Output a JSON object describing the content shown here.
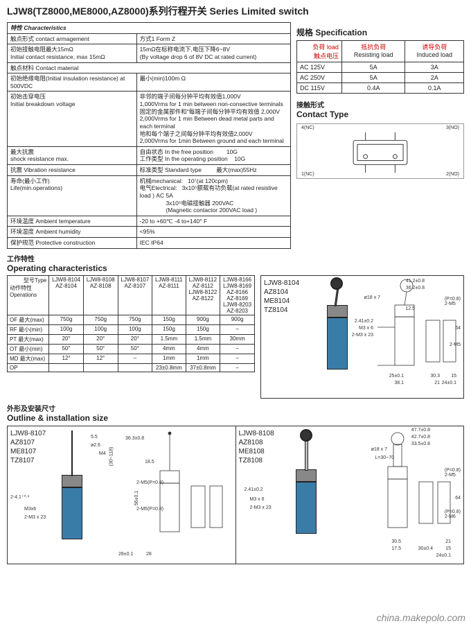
{
  "title": "LJW8(TZ8000,ME8000,AZ8000)系列行程开关 Series Limited switch",
  "char": {
    "heading": "特性 Characteristics",
    "rows": [
      [
        "触点形式 contact armagement",
        "方式1 Form Z"
      ],
      [
        "初始接触电阻最大15mΩ\nInitial contact resistance, max 15mΩ",
        "15mΩ在标称电流下,电压下降6~8V\n(By voltage drop 6 of 8V DC at rated current)"
      ],
      [
        "触点材料 Contact material",
        ""
      ],
      [
        "初始绝缘电阻(Initial insulation resistance) at 500VDC",
        "最小(min)100m Ω"
      ],
      [
        "初始击穿电压\nInitial breakdown voltage",
        "非邻的端子间每分钟平均有效值1,000V\n1,000Vrms for 1 min between non-consective terminals\n固定的金属部件和\"每端子间每分钟平均有效值 2,000V\n2,000Vrms for 1 min Between dead metal parts and each terminal\n地和每个端子之间每分钟平均有效值2,000V\n2,000Vrms for 1min Between ground and each terminal"
      ],
      [
        "最大抗震\nshock resistance max.",
        "自由状态 In the free position        10G\n工作类型 In the operating position    10G"
      ],
      [
        "抗震 Vibration resistance",
        "标准类型 Standard type         最大(max)55Hz"
      ],
      [
        "寿命(最小工作)\nLife(min.operations)",
        "机械mechanical:   10⁷(at 120cpm)\n电气Electrical:   3x10⁵额载有功负载(at rated resistive load ) AC 5A\n                3x10⁵电磁接触器 200VAC\n                (Magnetic contactor 200VAC load )"
      ],
      [
        "环境温度 Ambient temperature",
        "-20 to +60℃ -4 to+140° F"
      ],
      [
        "环境湿度 Ambient humidity",
        "<95%"
      ],
      [
        "保护规范 Protective construction",
        "IEC IP64"
      ]
    ]
  },
  "spec": {
    "heading_cn": "规格",
    "heading_en": "Specification",
    "col_load_cn": "负荷 load",
    "col_volt_cn": "触点电压",
    "col_res_cn": "抵抗负荷",
    "col_res_en": "Resisting load",
    "col_ind_cn": "诱导负荷",
    "col_ind_en": "Induced load",
    "rows": [
      [
        "AC 125V",
        "5A",
        "3A"
      ],
      [
        "AC 250V",
        "5A",
        "2A"
      ],
      [
        "DC 115V",
        "0.4A",
        "0.1A"
      ]
    ]
  },
  "contact": {
    "heading_cn": "接触形式",
    "heading_en": "Contact Type",
    "labels": {
      "nc1": "1(NC)",
      "no2": "2(NO)",
      "no3": "3(NO)",
      "nc4": "4(NC)"
    }
  },
  "op": {
    "heading_cn": "工作特性",
    "heading_en": "Operating characteristics",
    "type_label": "型号Type",
    "side_label": "动作特性\nOperations",
    "cols": [
      "LJW8-8104\nAZ-8104",
      "LJW8-8108\nAZ-8108",
      "LJW8-8107\nAZ-8107",
      "LJW8-8111\nAZ-8111",
      "LJW8-8112\nAZ-8112\nLJW8-8122\nAZ-8122",
      "LJW8-8166\nLJW8-8169\nAZ-8166\nAZ-8169\nLJW8-8203\nAZ-8203"
    ],
    "rows": [
      [
        "OF 最大(max)",
        "750g",
        "750g",
        "750g",
        "150g",
        "900g",
        "900g"
      ],
      [
        "RF 最小(min)",
        "100g",
        "100g",
        "100g",
        "150g",
        "150g",
        "–"
      ],
      [
        "PT 最大(max)",
        "20°",
        "20°",
        "20°",
        "1.5mm",
        "1.5mm",
        "30mm"
      ],
      [
        "OT 最小(min)",
        "50°",
        "50°",
        "50°",
        "4mm",
        "4mm",
        "–"
      ],
      [
        "MD 最大(max)",
        "12°",
        "12°",
        "–",
        "1mm",
        "1mm",
        "–"
      ],
      [
        "OP",
        "",
        "",
        "",
        "23±0.8mm",
        "37±0.8mm",
        "–"
      ]
    ]
  },
  "outline": {
    "heading_cn": "外形及安装尺寸",
    "heading_en": "Outline & installation size"
  },
  "models": {
    "m8104": [
      "LJW8-8104",
      "AZ8104",
      "ME8104",
      "TZ8104"
    ],
    "m8107": [
      "LJW8-8107",
      "AZ8107",
      "ME8107",
      "TZ8107"
    ],
    "m8108": [
      "LJW8-8108",
      "AZ8108",
      "ME8108",
      "TZ8108"
    ]
  },
  "dims": {
    "d1": "41.2±0.8",
    "d2": "36.2±0.8",
    "d3": "ø18 x 7",
    "d4": "(P=0.8)\n2-M5",
    "d5": "2.41±0.2",
    "d6": "M3 x 6",
    "d7": "2-M3 x 23",
    "d8": "12.5",
    "d9": "64",
    "d10": "2-M5",
    "d11": "25±0.1",
    "d12": "38.1",
    "d13": "30.3",
    "d14": "21",
    "d15": "15",
    "d16": "24±0.1",
    "p1": "5.5",
    "p2": "ø2.6",
    "p3": "M4",
    "p4": "2-4.1⁺⁰·²",
    "p5": "M3x6",
    "p6": "2-M3 x 23",
    "p7": "36.3±0.8",
    "p8": "18.5",
    "p9": "2-M5(P=0.8)",
    "p10": "56±0.1",
    "p11": "28±0.1",
    "p12": "28",
    "p13": "(30~118)",
    "q1": "47.7±0.8",
    "q2": "42.7±0.8",
    "q3": "33.5±0.8",
    "q4": "ø18 x 7",
    "q5": "L=30~70",
    "q6": "2.41±0.2",
    "q7": "M3 x 6",
    "q8": "2-M3 x 23",
    "q9": "(P=0.8)\n2-M5",
    "q10": "64",
    "q11": "(P=0.8)\n2-M6",
    "q12": "30.5",
    "q13": "17.5",
    "q14": "30±0.4",
    "q15": "21",
    "q16": "15",
    "q17": "24±0.1"
  },
  "colors": {
    "switch_body": "#3a7ca8",
    "switch_cap": "#888888",
    "line": "#333333"
  },
  "watermark": "china.makepolo.com"
}
